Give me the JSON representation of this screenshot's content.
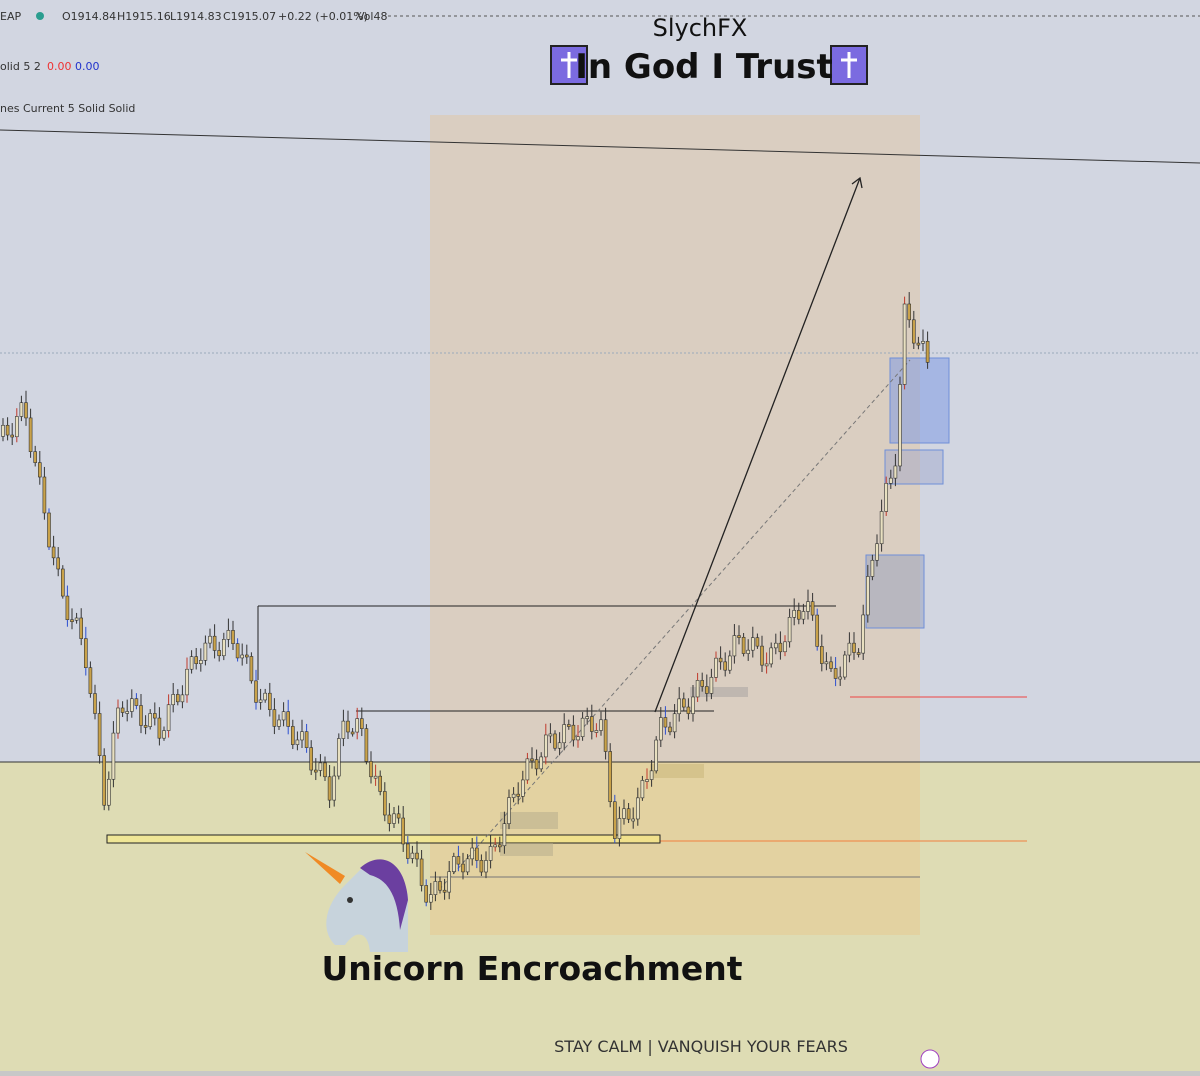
{
  "header": {
    "symbol": "EAP",
    "open": "O1914.84",
    "high": "H1915.16",
    "low": "L1914.83",
    "close": "C1915.07",
    "change": "+0.22 (+0.01%)",
    "volume": "Vol48"
  },
  "indicators": [
    {
      "label": "olid 5 2",
      "values": [
        "0.00",
        "0.00"
      ]
    },
    {
      "label": "nes Current 5 Solid Solid"
    }
  ],
  "title": "SlychFX",
  "subtitle": "In God I Trust",
  "annotation": "Unicorn Encroachment",
  "footer": "STAY CALM | VANQUISH YOUR FEARS"
}
